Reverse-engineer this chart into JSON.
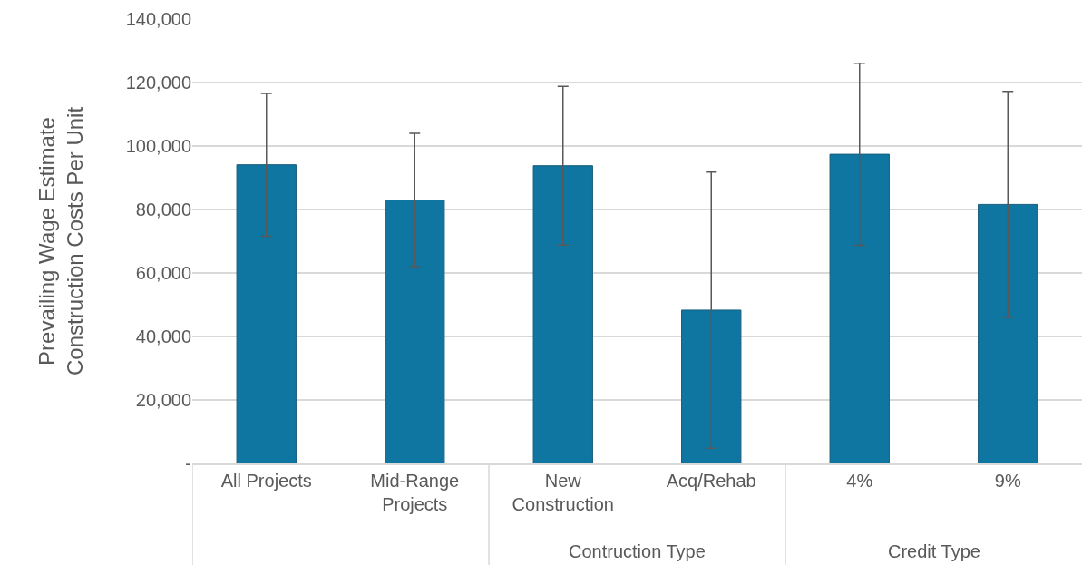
{
  "chart_data": {
    "type": "bar",
    "ylabel": "Prevailing Wage Estimate Construction Costs Per Unit",
    "categories": [
      "All Projects",
      "Mid-Range Projects",
      "New Construction",
      "Acq/Rehab",
      "4%",
      "9%"
    ],
    "values": [
      94100,
      83000,
      93800,
      48300,
      97400,
      81600
    ],
    "errors": [
      22500,
      21000,
      25000,
      43500,
      28700,
      35600
    ],
    "color": "#0e76a0",
    "ylim": [
      0,
      140000
    ],
    "yticks": [
      {
        "value": 0,
        "label": "-"
      },
      {
        "value": 20000,
        "label": "20,000"
      },
      {
        "value": 40000,
        "label": "40,000"
      },
      {
        "value": 60000,
        "label": "60,000"
      },
      {
        "value": 80000,
        "label": "80,000"
      },
      {
        "value": 100000,
        "label": "100,000"
      },
      {
        "value": 120000,
        "label": "120,000"
      },
      {
        "value": 140000,
        "label": "140,000"
      }
    ],
    "annotations": [
      "Contruction Type",
      "Credit Type"
    ],
    "grid": "y"
  }
}
